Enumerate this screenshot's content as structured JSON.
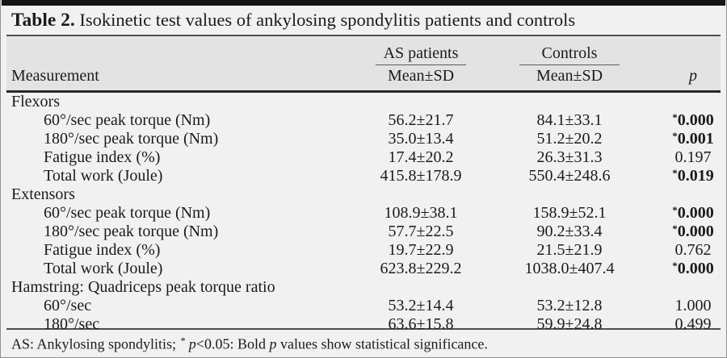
{
  "title": {
    "label": "Table 2.",
    "text": " Isokinetic test values of ankylosing spondylitis patients and controls"
  },
  "header": {
    "measurement": "Measurement",
    "group_as": "AS patients",
    "group_controls": "Controls",
    "mean_sd_as": "Mean±SD",
    "mean_sd_controls": "Mean±SD",
    "p": "p"
  },
  "rows": [
    {
      "type": "section",
      "label": "Flexors"
    },
    {
      "type": "item",
      "label": "60°/sec peak torque (Nm)",
      "as": "56.2±21.7",
      "controls": "84.1±33.1",
      "star": "*",
      "p": "0.000",
      "significant": true
    },
    {
      "type": "item",
      "label": "180°/sec peak torque (Nm)",
      "as": "35.0±13.4",
      "controls": "51.2±20.2",
      "star": "*",
      "p": "0.001",
      "significant": true
    },
    {
      "type": "item",
      "label": "Fatigue index (%)",
      "as": "17.4±20.2",
      "controls": "26.3±31.3",
      "p": "0.197",
      "significant": false
    },
    {
      "type": "item",
      "label": "Total work (Joule)",
      "as": "415.8±178.9",
      "controls": "550.4±248.6",
      "star": "*",
      "p": "0.019",
      "significant": true
    },
    {
      "type": "section",
      "label": "Extensors"
    },
    {
      "type": "item",
      "label": "60°/sec peak torque (Nm)",
      "as": "108.9±38.1",
      "controls": "158.9±52.1",
      "star": "*",
      "p": "0.000",
      "significant": true
    },
    {
      "type": "item",
      "label": "180°/sec peak torque (Nm)",
      "as": "57.7±22.5",
      "controls": "90.2±33.4",
      "star": "*",
      "p": "0.000",
      "significant": true
    },
    {
      "type": "item",
      "label": "Fatigue index (%)",
      "as": "19.7±22.9",
      "controls": "21.5±21.9",
      "p": "0.762",
      "significant": false
    },
    {
      "type": "item",
      "label": "Total work (Joule)",
      "as": "623.8±229.2",
      "controls": "1038.0±407.4",
      "star": "*",
      "p": "0.000",
      "significant": true
    },
    {
      "type": "section",
      "label": "Hamstring: Quadriceps peak torque ratio"
    },
    {
      "type": "item",
      "label": "60°/sec",
      "as": "53.2±14.4",
      "controls": "53.2±12.8",
      "p": "1.000",
      "significant": false
    },
    {
      "type": "item",
      "label": "180°/sec",
      "as": "63.6±15.8",
      "controls": "59.9±24.8",
      "p": "0.499",
      "significant": false
    }
  ],
  "footnote": {
    "pre": "AS: Ankylosing spondylitis; ",
    "star": "*",
    "p1": "p",
    "mid": "<0.05: Bold ",
    "p2": "p",
    "rest": " values show statistical significance."
  },
  "colors": {
    "page_bg": "#f1f1f2",
    "header_bg": "#e3e3e4",
    "top_bar": "#151515",
    "rule": "#4f4f4f"
  }
}
